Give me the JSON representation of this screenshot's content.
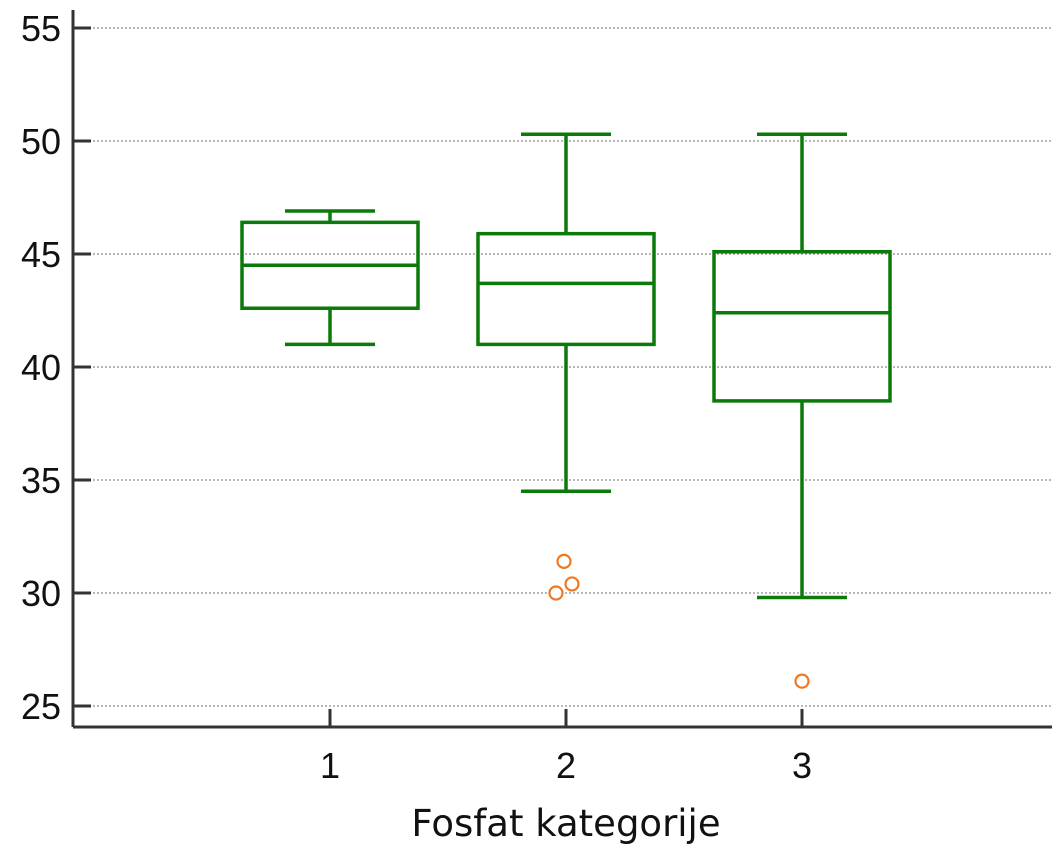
{
  "chart_data": {
    "type": "boxplot",
    "title": "",
    "xlabel": "Fosfat kategorije",
    "ylabel": "",
    "ylim": [
      25,
      55
    ],
    "yticks": [
      25,
      30,
      35,
      40,
      45,
      50,
      55
    ],
    "grid": true,
    "categories": [
      "1",
      "2",
      "3"
    ],
    "boxes": [
      {
        "category": "1",
        "whisker_low": 41.0,
        "q1": 42.6,
        "median": 44.5,
        "q3": 46.4,
        "whisker_high": 46.9,
        "outliers": []
      },
      {
        "category": "2",
        "whisker_low": 34.5,
        "q1": 41.0,
        "median": 43.7,
        "q3": 45.9,
        "whisker_high": 50.3,
        "outliers": [
          31.4,
          30.4,
          30.0
        ]
      },
      {
        "category": "3",
        "whisker_low": 29.8,
        "q1": 38.5,
        "median": 42.4,
        "q3": 45.1,
        "whisker_high": 50.3,
        "outliers": [
          26.1
        ]
      }
    ],
    "colors": {
      "box": "#0b7a0b",
      "outlier": "#f07820",
      "axis": "#333333",
      "grid": "#8c8c8c"
    }
  }
}
